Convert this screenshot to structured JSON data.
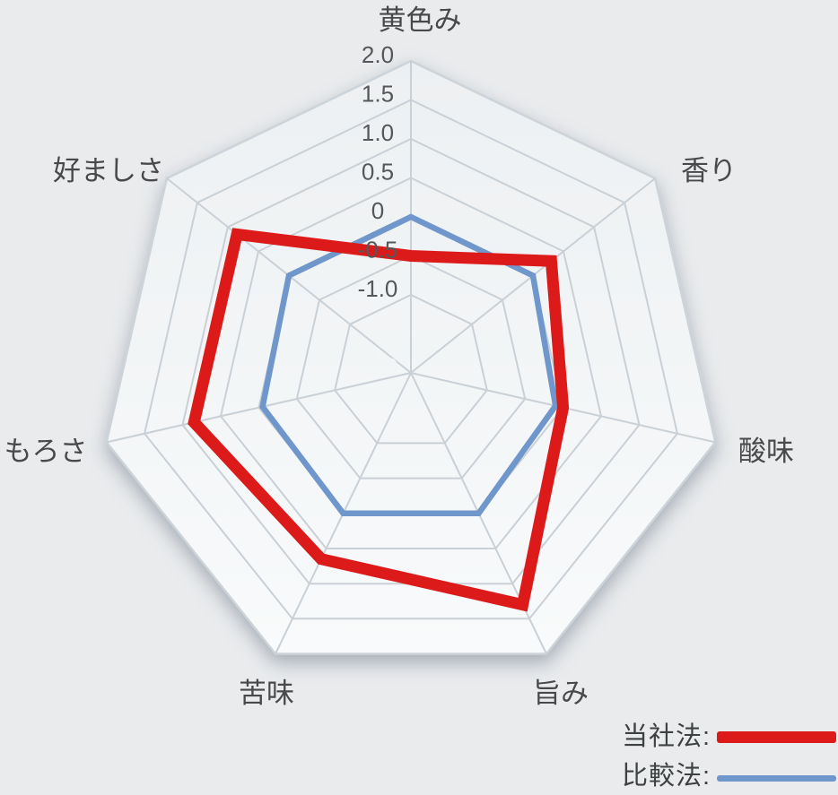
{
  "chart_data": {
    "type": "radar",
    "title": "",
    "categories": [
      "黄色み",
      "香り",
      "酸味",
      "旨み",
      "苦味",
      "もろさ",
      "好ましさ"
    ],
    "series": [
      {
        "name": "当社法",
        "values": [
          -0.5,
          0.3,
          0.0,
          1.3,
          0.65,
          0.85,
          0.85
        ],
        "color": "#dc1a1a",
        "stroke_width": 13
      },
      {
        "name": "比較法",
        "values": [
          0.0,
          0.0,
          -0.1,
          0.0,
          0.0,
          -0.05,
          0.0
        ],
        "color": "#7097cb",
        "stroke_width": 6.5
      }
    ],
    "radial_axis": {
      "min": -2.0,
      "max": 2.0,
      "tick_interval": 0.5,
      "ticks": [
        {
          "value": 2.0,
          "label": "2.0"
        },
        {
          "value": 1.5,
          "label": "1.5"
        },
        {
          "value": 1.0,
          "label": "1.0"
        },
        {
          "value": 0.5,
          "label": "0.5"
        },
        {
          "value": 0.0,
          "label": "0"
        },
        {
          "value": -0.5,
          "label": "-0.5"
        },
        {
          "value": -1.0,
          "label": "-1.0"
        },
        {
          "value": -1.5,
          "label": "-1.5"
        },
        {
          "value": -2.0,
          "label": "-2.0"
        }
      ]
    },
    "grid": "on",
    "legend": {
      "position": "bottom-right",
      "items": [
        {
          "label": "当社法:",
          "color": "#dc1a1a"
        },
        {
          "label": "比較法:",
          "color": "#7097cb"
        }
      ]
    },
    "colors": {
      "background": "#e9ebed",
      "plot_fill_top": "#edf0f2",
      "plot_fill_bottom": "#f8fafb",
      "grid_line": "#c9d0d6",
      "inner_grid_line": "#f3f6f7",
      "tick_text": "#55585b",
      "inner_tick_text": "#f2f5f6",
      "axis_label_text": "#47494b"
    }
  }
}
